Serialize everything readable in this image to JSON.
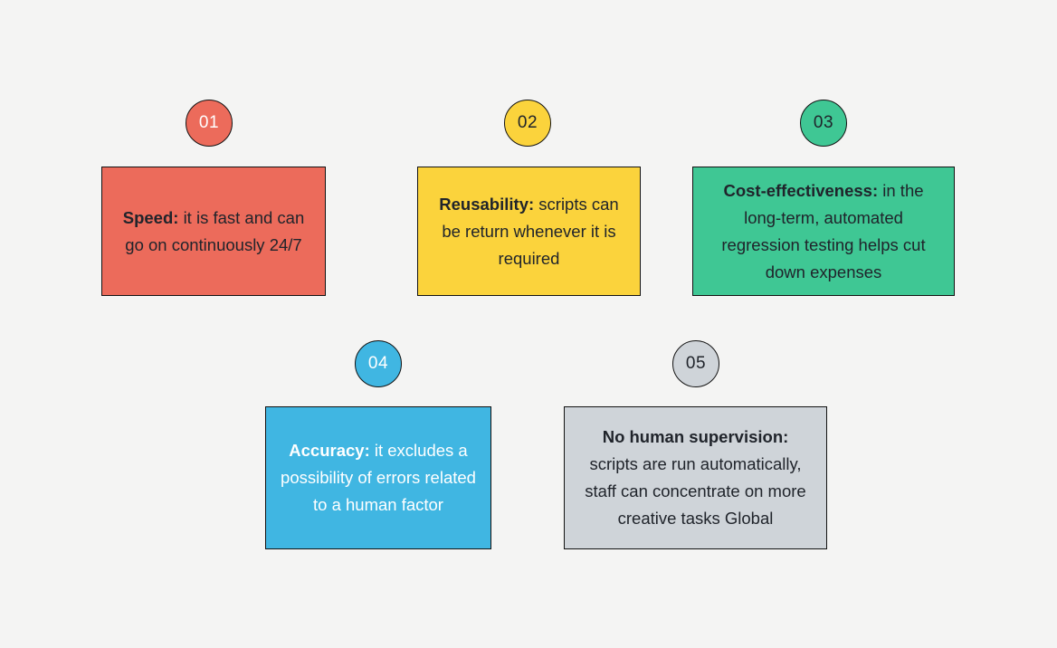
{
  "page": {
    "background": "#F4F4F3",
    "border_color": "#121212",
    "dark_text": "#20242B",
    "light_text": "#FFFFFF"
  },
  "items": [
    {
      "number": "01",
      "color": "#EC6B5B",
      "number_color": "#FFFFFF",
      "text_color": "#20242B",
      "label": "Speed:",
      "text": "it is fast and can go on continuously 24/7"
    },
    {
      "number": "02",
      "color": "#FBD33C",
      "number_color": "#20242B",
      "text_color": "#20242B",
      "label": "Reusability:",
      "text": "scripts can be return whenever it is required"
    },
    {
      "number": "03",
      "color": "#3FC794",
      "number_color": "#20242B",
      "text_color": "#20242B",
      "label": "Cost-effectiveness:",
      "text": "in the long-term, automated regression testing helps cut down expenses"
    },
    {
      "number": "04",
      "color": "#40B6E2",
      "number_color": "#FFFFFF",
      "text_color": "#FFFFFF",
      "label": "Accuracy:",
      "text": "it excludes a possibility of errors related to a human factor"
    },
    {
      "number": "05",
      "color": "#CFD4D9",
      "number_color": "#20242B",
      "text_color": "#20242B",
      "label": "No human supervision:",
      "text": "scripts are run automatically, staff can concentrate on more creative tasks Global"
    }
  ]
}
